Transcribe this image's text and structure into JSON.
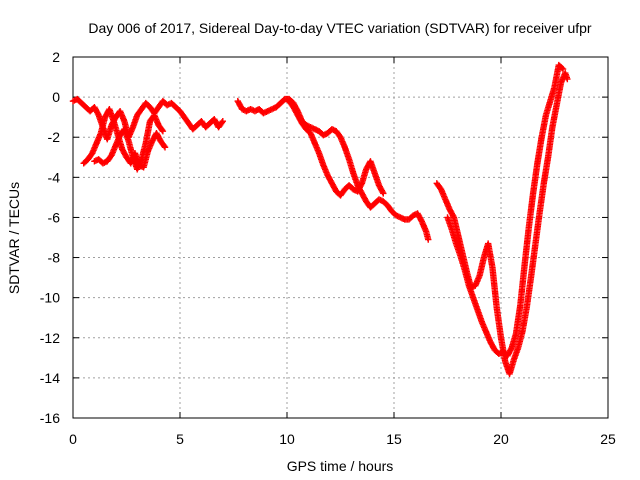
{
  "chart_data": {
    "type": "scatter",
    "title": "Day 006 of 2017, Sidereal Day-to-day VTEC variation (SDTVAR) for receiver ufpr",
    "xlabel": "GPS time / hours",
    "ylabel": "SDTVAR / TECUs",
    "xlim": [
      0,
      25
    ],
    "ylim": [
      -16,
      2
    ],
    "xticks": [
      0,
      5,
      10,
      15,
      20,
      25
    ],
    "yticks": [
      2,
      0,
      -2,
      -4,
      -6,
      -8,
      -10,
      -12,
      -14,
      -16
    ],
    "grid": true,
    "marker": "plus",
    "color": "#ff0000",
    "series": [
      {
        "points": [
          [
            0.0,
            -0.2
          ],
          [
            0.2,
            -0.1
          ],
          [
            0.4,
            -0.3
          ],
          [
            0.6,
            -0.5
          ],
          [
            0.8,
            -0.7
          ],
          [
            1.0,
            -0.5
          ],
          [
            1.2,
            -0.9
          ],
          [
            1.4,
            -1.5
          ],
          [
            1.6,
            -2.1
          ],
          [
            1.8,
            -1.4
          ],
          [
            2.0,
            -1.0
          ],
          [
            2.2,
            -0.7
          ],
          [
            2.4,
            -1.2
          ],
          [
            2.6,
            -2.0
          ],
          [
            2.8,
            -1.5
          ],
          [
            3.0,
            -0.9
          ],
          [
            3.2,
            -0.6
          ],
          [
            3.4,
            -0.3
          ],
          [
            3.6,
            -0.5
          ],
          [
            3.8,
            -0.8
          ],
          [
            4.0,
            -0.5
          ],
          [
            4.2,
            -0.2
          ],
          [
            4.4,
            -0.4
          ],
          [
            4.6,
            -0.3
          ],
          [
            4.8,
            -0.5
          ],
          [
            5.0,
            -0.7
          ],
          [
            5.2,
            -1.0
          ],
          [
            5.4,
            -1.3
          ],
          [
            5.6,
            -1.6
          ],
          [
            5.8,
            -1.4
          ],
          [
            6.0,
            -1.2
          ],
          [
            6.2,
            -1.5
          ],
          [
            6.4,
            -1.3
          ],
          [
            6.6,
            -1.1
          ],
          [
            6.8,
            -1.5
          ],
          [
            7.0,
            -1.2
          ]
        ]
      },
      {
        "points": [
          [
            0.5,
            -3.3
          ],
          [
            0.7,
            -3.1
          ],
          [
            0.9,
            -2.8
          ],
          [
            1.1,
            -2.3
          ],
          [
            1.3,
            -1.8
          ],
          [
            1.5,
            -1.0
          ],
          [
            1.7,
            -0.6
          ],
          [
            1.9,
            -1.2
          ],
          [
            2.1,
            -1.9
          ],
          [
            2.3,
            -2.6
          ],
          [
            2.5,
            -3.0
          ],
          [
            2.7,
            -3.3
          ],
          [
            2.9,
            -2.8
          ],
          [
            3.1,
            -3.4
          ],
          [
            3.3,
            -3.5
          ],
          [
            3.5,
            -2.7
          ],
          [
            3.7,
            -2.2
          ],
          [
            3.9,
            -1.8
          ],
          [
            4.1,
            -2.2
          ],
          [
            4.3,
            -2.5
          ]
        ]
      },
      {
        "points": [
          [
            1.0,
            -3.2
          ],
          [
            1.2,
            -3.1
          ],
          [
            1.4,
            -3.3
          ],
          [
            1.6,
            -3.2
          ],
          [
            1.8,
            -2.9
          ],
          [
            2.0,
            -2.4
          ],
          [
            2.2,
            -1.9
          ],
          [
            2.4,
            -1.6
          ],
          [
            2.6,
            -2.2
          ],
          [
            2.8,
            -3.0
          ],
          [
            3.0,
            -3.6
          ],
          [
            3.2,
            -3.1
          ],
          [
            3.4,
            -2.3
          ],
          [
            3.6,
            -1.2
          ],
          [
            3.8,
            -0.9
          ],
          [
            4.0,
            -1.4
          ],
          [
            4.2,
            -1.7
          ]
        ]
      },
      {
        "points": [
          [
            7.7,
            -0.2
          ],
          [
            7.9,
            -0.6
          ],
          [
            8.1,
            -0.7
          ],
          [
            8.3,
            -0.6
          ],
          [
            8.5,
            -0.7
          ],
          [
            8.7,
            -0.6
          ],
          [
            8.9,
            -0.8
          ],
          [
            9.1,
            -0.7
          ],
          [
            9.3,
            -0.6
          ],
          [
            9.5,
            -0.5
          ],
          [
            9.7,
            -0.3
          ],
          [
            9.9,
            -0.1
          ],
          [
            10.1,
            -0.1
          ],
          [
            10.3,
            -0.3
          ],
          [
            10.5,
            -0.7
          ],
          [
            10.7,
            -1.2
          ],
          [
            10.9,
            -1.4
          ],
          [
            11.1,
            -1.5
          ],
          [
            11.3,
            -1.6
          ],
          [
            11.5,
            -1.7
          ],
          [
            11.7,
            -1.9
          ],
          [
            11.9,
            -1.8
          ],
          [
            12.1,
            -1.6
          ],
          [
            12.3,
            -1.7
          ],
          [
            12.5,
            -2.0
          ],
          [
            12.7,
            -2.5
          ],
          [
            12.9,
            -3.1
          ],
          [
            13.1,
            -3.8
          ],
          [
            13.3,
            -4.4
          ],
          [
            13.5,
            -4.8
          ],
          [
            13.7,
            -5.2
          ],
          [
            13.9,
            -5.5
          ],
          [
            14.1,
            -5.3
          ],
          [
            14.3,
            -5.1
          ],
          [
            14.5,
            -5.2
          ],
          [
            14.7,
            -5.4
          ],
          [
            14.9,
            -5.7
          ],
          [
            15.1,
            -5.9
          ],
          [
            15.3,
            -6.0
          ],
          [
            15.5,
            -6.1
          ],
          [
            15.7,
            -6.1
          ],
          [
            15.9,
            -5.9
          ],
          [
            16.1,
            -5.8
          ],
          [
            16.3,
            -6.2
          ],
          [
            16.5,
            -6.7
          ],
          [
            16.6,
            -7.1
          ]
        ]
      },
      {
        "points": [
          [
            10.1,
            -0.2
          ],
          [
            10.3,
            -0.5
          ],
          [
            10.5,
            -0.9
          ],
          [
            10.7,
            -1.3
          ],
          [
            10.9,
            -1.6
          ],
          [
            11.1,
            -1.8
          ],
          [
            11.3,
            -2.3
          ],
          [
            11.5,
            -2.8
          ],
          [
            11.7,
            -3.4
          ],
          [
            11.9,
            -3.9
          ],
          [
            12.1,
            -4.3
          ],
          [
            12.3,
            -4.7
          ],
          [
            12.5,
            -4.9
          ],
          [
            12.7,
            -4.6
          ],
          [
            12.9,
            -4.4
          ],
          [
            13.1,
            -4.6
          ],
          [
            13.3,
            -4.7
          ],
          [
            13.5,
            -4.3
          ],
          [
            13.7,
            -3.6
          ],
          [
            13.9,
            -3.2
          ],
          [
            14.1,
            -3.8
          ],
          [
            14.3,
            -4.4
          ],
          [
            14.5,
            -4.8
          ]
        ]
      },
      {
        "points": [
          [
            17.0,
            -4.3
          ],
          [
            17.2,
            -4.6
          ],
          [
            17.4,
            -5.1
          ],
          [
            17.6,
            -5.6
          ],
          [
            17.8,
            -6.0
          ],
          [
            18.0,
            -6.9
          ],
          [
            18.2,
            -7.8
          ],
          [
            18.4,
            -8.7
          ],
          [
            18.6,
            -9.5
          ],
          [
            18.8,
            -9.4
          ],
          [
            19.0,
            -8.9
          ],
          [
            19.2,
            -8.0
          ],
          [
            19.4,
            -7.3
          ],
          [
            19.6,
            -8.5
          ],
          [
            19.8,
            -10.5
          ],
          [
            20.0,
            -12.0
          ],
          [
            20.2,
            -13.2
          ],
          [
            20.4,
            -13.8
          ],
          [
            20.6,
            -13.1
          ],
          [
            20.8,
            -12.5
          ],
          [
            21.0,
            -11.7
          ],
          [
            21.2,
            -10.5
          ],
          [
            21.4,
            -9.0
          ],
          [
            21.6,
            -7.4
          ],
          [
            21.8,
            -5.8
          ],
          [
            22.0,
            -4.3
          ],
          [
            22.2,
            -3.0
          ],
          [
            22.4,
            -1.5
          ],
          [
            22.6,
            -0.4
          ],
          [
            22.8,
            0.7
          ],
          [
            23.0,
            1.2
          ],
          [
            23.1,
            0.9
          ]
        ]
      },
      {
        "points": [
          [
            17.5,
            -6.0
          ],
          [
            17.7,
            -6.6
          ],
          [
            17.9,
            -7.3
          ],
          [
            18.1,
            -7.9
          ],
          [
            18.3,
            -8.6
          ],
          [
            18.5,
            -9.4
          ],
          [
            18.7,
            -10.0
          ],
          [
            18.9,
            -10.6
          ],
          [
            19.1,
            -11.2
          ],
          [
            19.3,
            -11.7
          ],
          [
            19.5,
            -12.2
          ],
          [
            19.7,
            -12.6
          ],
          [
            19.9,
            -12.8
          ],
          [
            20.1,
            -12.7
          ],
          [
            20.3,
            -12.9
          ],
          [
            20.5,
            -12.5
          ],
          [
            20.7,
            -11.8
          ],
          [
            20.9,
            -10.4
          ],
          [
            21.1,
            -8.4
          ],
          [
            21.3,
            -6.5
          ],
          [
            21.5,
            -4.8
          ],
          [
            21.7,
            -3.3
          ],
          [
            21.9,
            -2.0
          ],
          [
            22.1,
            -0.9
          ],
          [
            22.3,
            -0.2
          ],
          [
            22.5,
            0.5
          ],
          [
            22.7,
            1.6
          ],
          [
            22.9,
            1.4
          ]
        ]
      }
    ]
  }
}
